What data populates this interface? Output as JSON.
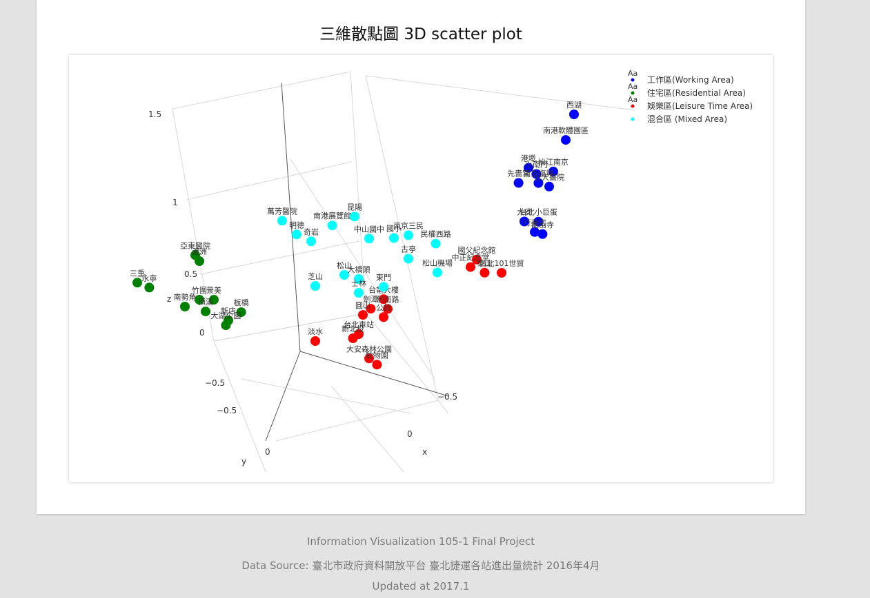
{
  "title": "三維散點圖 3D scatter plot",
  "footer": {
    "line1": "Information Visualization 105-1 Final Project",
    "line2": "Data Source: 臺北市政府資料開放平台 臺北捷運各站進出量統計 2016年4月",
    "line3": "Updated at 2017.1"
  },
  "legend": {
    "items": [
      {
        "label": "工作區(Working Area)",
        "color": "#0000ff"
      },
      {
        "label": "住宅區(Residential Area)",
        "color": "#008000"
      },
      {
        "label": "娛樂區(Leisure Time Area)",
        "color": "#ff0000"
      },
      {
        "label": "混合區 (Mixed Area)",
        "color": "#00ffff"
      }
    ]
  },
  "axes": {
    "x": {
      "label": "x",
      "ticks": [
        "−0.5",
        "0"
      ]
    },
    "y": {
      "label": "y",
      "ticks": [
        "−0.5",
        "0"
      ]
    },
    "z": {
      "label": "z",
      "ticks": [
        "1.5",
        "1",
        "0.5",
        "0",
        "−0.5"
      ]
    }
  },
  "chart_data": {
    "type": "scatter",
    "dimensions": 3,
    "grid": true,
    "legend_position": "top-right",
    "series": [
      {
        "name": "工作區(Working Area)",
        "color": "#0000ff",
        "points": [
          {
            "label": "西湖",
            "x": -0.8,
            "y": 0.6,
            "z": 1.45
          },
          {
            "label": "南港軟體園區",
            "x": -0.78,
            "y": 0.55,
            "z": 1.25
          },
          {
            "label": "港墘",
            "x": -0.62,
            "y": 0.5,
            "z": 1.1
          },
          {
            "label": "松江南京",
            "x": -0.72,
            "y": 0.55,
            "z": 1.05
          },
          {
            "label": "小南門",
            "x": -0.65,
            "y": 0.52,
            "z": 1.05
          },
          {
            "label": "先嗇宮",
            "x": -0.58,
            "y": 0.48,
            "z": 1.0
          },
          {
            "label": "南京復興",
            "x": -0.66,
            "y": 0.52,
            "z": 0.98
          },
          {
            "label": "台大醫院",
            "x": -0.7,
            "y": 0.55,
            "z": 0.95
          },
          {
            "label": "大安",
            "x": -0.6,
            "y": 0.5,
            "z": 0.72
          },
          {
            "label": "台北小巨蛋",
            "x": -0.66,
            "y": 0.52,
            "z": 0.7
          },
          {
            "label": "行天宮",
            "x": -0.65,
            "y": 0.5,
            "z": 0.62
          },
          {
            "label": "龍山寺",
            "x": -0.68,
            "y": 0.52,
            "z": 0.6
          }
        ]
      },
      {
        "name": "住宅區(Residential Area)",
        "color": "#008000",
        "points": [
          {
            "label": "亞東醫院",
            "x": 0.55,
            "y": -0.6,
            "z": 0.5
          },
          {
            "label": "蘆洲",
            "x": 0.55,
            "y": -0.55,
            "z": 0.48
          },
          {
            "label": "三重",
            "x": 0.75,
            "y": -0.8,
            "z": 0.3
          },
          {
            "label": "永寧",
            "x": 0.7,
            "y": -0.78,
            "z": 0.25
          },
          {
            "label": "竹圍",
            "x": 0.55,
            "y": -0.55,
            "z": 0.2
          },
          {
            "label": "景美",
            "x": 0.5,
            "y": -0.5,
            "z": 0.2
          },
          {
            "label": "新店",
            "x": 0.45,
            "y": -0.45,
            "z": 0.05
          },
          {
            "label": "板橋",
            "x": 0.4,
            "y": -0.42,
            "z": 0.1
          },
          {
            "label": "大湖公園",
            "x": 0.45,
            "y": -0.48,
            "z": 0.0
          },
          {
            "label": "南勢角",
            "x": 0.6,
            "y": -0.6,
            "z": 0.15
          },
          {
            "label": "頂溪",
            "x": 0.52,
            "y": -0.55,
            "z": 0.1
          }
        ]
      },
      {
        "name": "娛樂區(Leisure Time Area)",
        "color": "#ff0000",
        "points": [
          {
            "label": "國父紀念館",
            "x": -0.45,
            "y": 0.3,
            "z": 0.42
          },
          {
            "label": "中正紀念堂",
            "x": -0.42,
            "y": 0.3,
            "z": 0.38
          },
          {
            "label": "象山",
            "x": -0.48,
            "y": 0.32,
            "z": 0.32
          },
          {
            "label": "台北101世貿",
            "x": -0.55,
            "y": 0.35,
            "z": 0.3
          },
          {
            "label": "台電大樓",
            "x": -0.1,
            "y": 0.05,
            "z": 0.18
          },
          {
            "label": "劍潭",
            "x": -0.05,
            "y": 0.02,
            "z": 0.12
          },
          {
            "label": "圓山",
            "x": -0.02,
            "y": 0.0,
            "z": 0.08
          },
          {
            "label": "劍南路",
            "x": -0.12,
            "y": 0.05,
            "z": 0.1
          },
          {
            "label": "公館",
            "x": -0.1,
            "y": 0.05,
            "z": 0.05
          },
          {
            "label": "台北車站",
            "x": 0.0,
            "y": 0.0,
            "z": -0.05
          },
          {
            "label": "新北投",
            "x": 0.02,
            "y": -0.02,
            "z": -0.08
          },
          {
            "label": "淡水",
            "x": 0.15,
            "y": -0.15,
            "z": -0.1
          },
          {
            "label": "大安森林公園",
            "x": -0.05,
            "y": 0.0,
            "z": -0.25
          },
          {
            "label": "動物園",
            "x": -0.08,
            "y": 0.02,
            "z": -0.3
          }
        ]
      },
      {
        "name": "混合區 (Mixed Area)",
        "color": "#00ffff",
        "points": [
          {
            "label": "萬芳醫院",
            "x": 0.25,
            "y": -0.3,
            "z": 0.75
          },
          {
            "label": "南港展覽館",
            "x": 0.08,
            "y": -0.12,
            "z": 0.72
          },
          {
            "label": "昆陽",
            "x": 0.0,
            "y": -0.05,
            "z": 0.78
          },
          {
            "label": "明德",
            "x": 0.2,
            "y": -0.25,
            "z": 0.65
          },
          {
            "label": "奇岩",
            "x": 0.15,
            "y": -0.2,
            "z": 0.6
          },
          {
            "label": "中山國中",
            "x": -0.05,
            "y": 0.0,
            "z": 0.62
          },
          {
            "label": "南京三民",
            "x": -0.2,
            "y": 0.1,
            "z": 0.62
          },
          {
            "label": "國小",
            "x": -0.15,
            "y": 0.05,
            "z": 0.6
          },
          {
            "label": "古亭",
            "x": -0.2,
            "y": 0.1,
            "z": 0.45
          },
          {
            "label": "民權西路",
            "x": -0.3,
            "y": 0.18,
            "z": 0.55
          },
          {
            "label": "松山",
            "x": 0.05,
            "y": -0.05,
            "z": 0.38
          },
          {
            "label": "大橋頭",
            "x": 0.0,
            "y": 0.0,
            "z": 0.35
          },
          {
            "label": "士林",
            "x": 0.0,
            "y": 0.0,
            "z": 0.25
          },
          {
            "label": "東門",
            "x": -0.1,
            "y": 0.05,
            "z": 0.27
          },
          {
            "label": "松山機場",
            "x": -0.3,
            "y": 0.2,
            "z": 0.35
          },
          {
            "label": "芝山",
            "x": 0.15,
            "y": -0.15,
            "z": 0.3
          }
        ]
      }
    ]
  }
}
